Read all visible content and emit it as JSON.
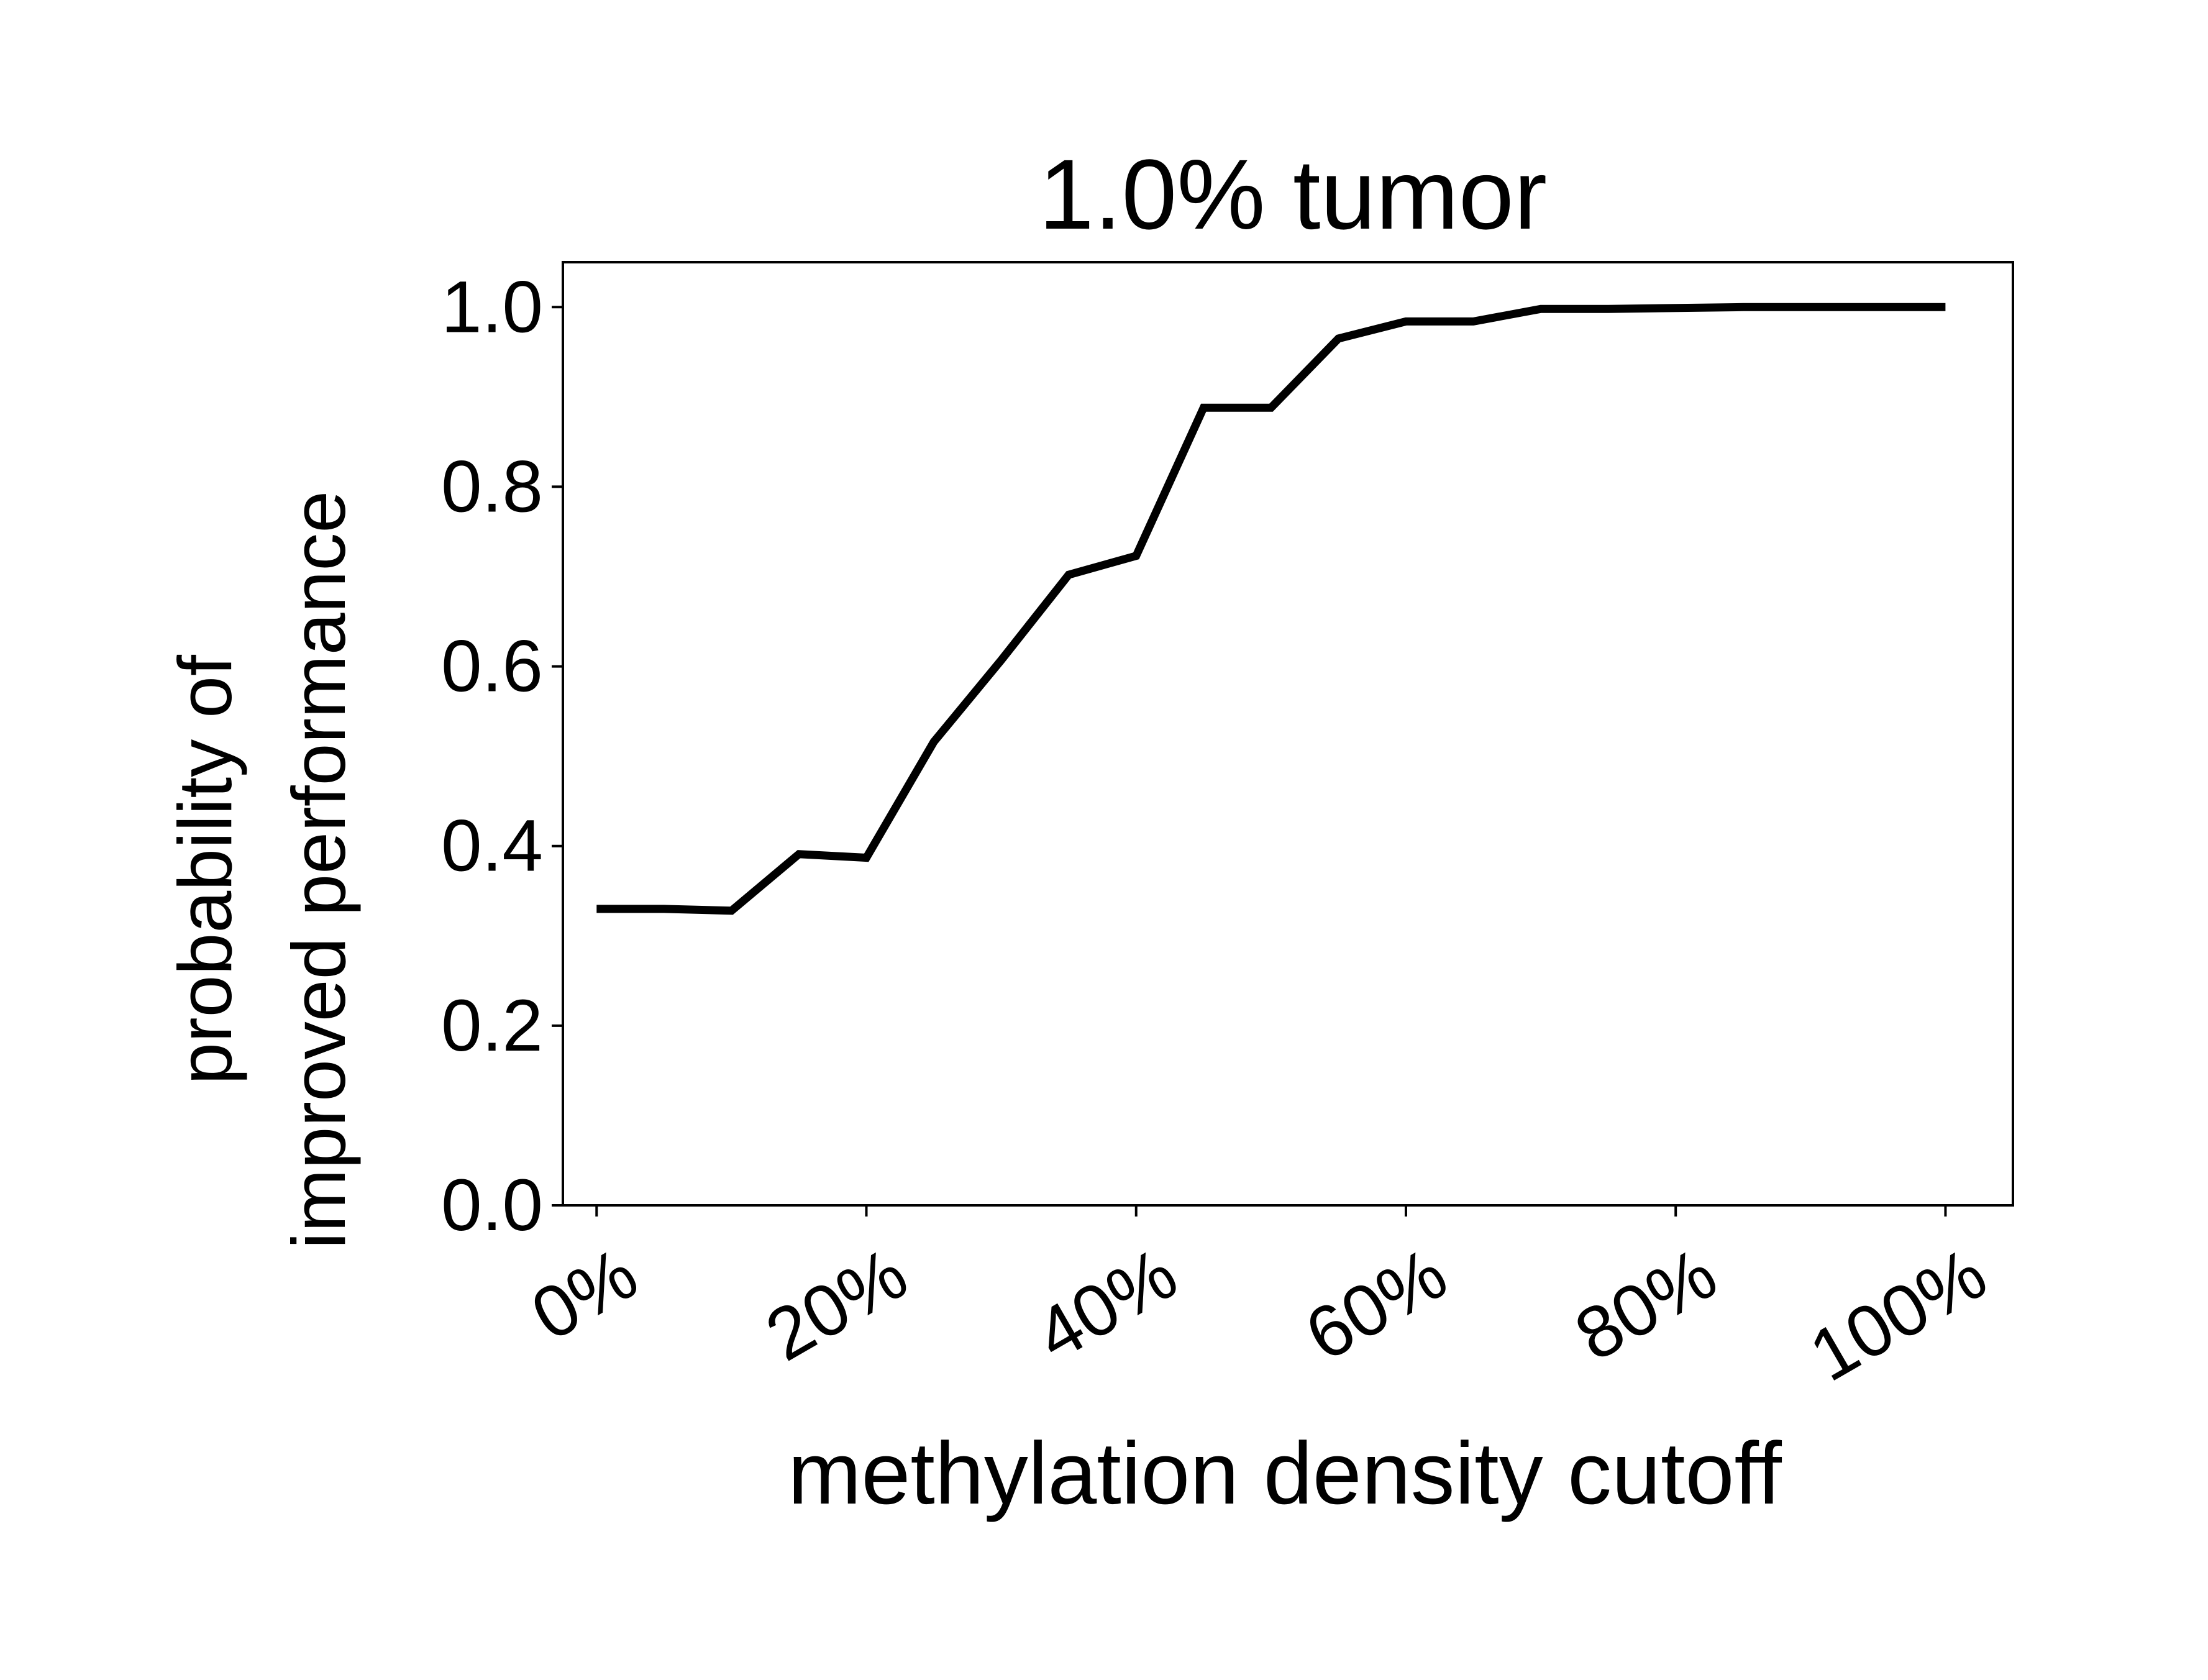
{
  "chart_data": {
    "type": "line",
    "title": "1.0% tumor",
    "xlabel": "methylation density cutoff",
    "ylabel": [
      "probability of",
      "improved performance"
    ],
    "xlim": [
      -0.025,
      1.05
    ],
    "ylim": [
      0.0,
      1.05
    ],
    "x_ticks": [
      0,
      0.2,
      0.4,
      0.6,
      0.8,
      1.0
    ],
    "x_tick_labels": [
      "0%",
      "20%",
      "40%",
      "60%",
      "80%",
      "100%"
    ],
    "y_ticks": [
      0.0,
      0.2,
      0.4,
      0.6,
      0.8,
      1.0
    ],
    "y_tick_labels": [
      "0.0",
      "0.2",
      "0.4",
      "0.6",
      "0.8",
      "1.0"
    ],
    "grid": false,
    "legend": "none",
    "series": [
      {
        "color": "#000000",
        "x": [
          0,
          0.05,
          0.1,
          0.15,
          0.2,
          0.25,
          0.3,
          0.35,
          0.4,
          0.45,
          0.5,
          0.55,
          0.6,
          0.65,
          0.7,
          0.75,
          0.8,
          0.85,
          0.9,
          0.95,
          1.0
        ],
        "y": [
          0.33,
          0.33,
          0.328,
          0.391,
          0.387,
          0.516,
          0.607,
          0.702,
          0.723,
          0.888,
          0.888,
          0.965,
          0.984,
          0.984,
          0.998,
          0.998,
          0.999,
          1.0,
          1.0,
          1.0,
          1.0
        ]
      }
    ]
  }
}
